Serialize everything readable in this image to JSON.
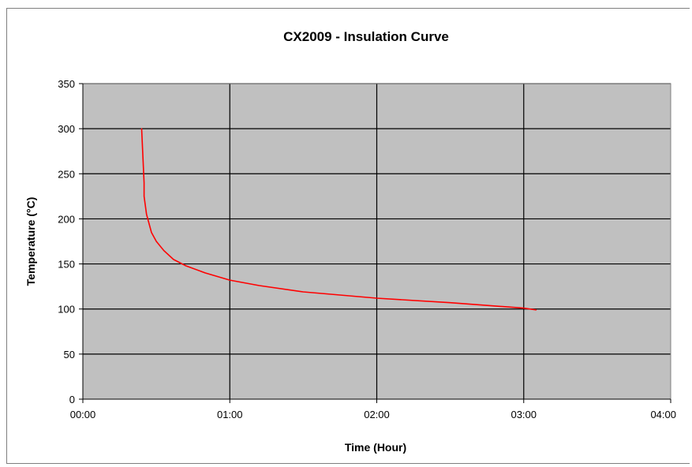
{
  "chart_data": {
    "type": "line",
    "title": "CX2009 - Insulation Curve",
    "xlabel": "Time (Hour)",
    "ylabel": "Temperature (°C)",
    "xlim": [
      "00:00",
      "04:00"
    ],
    "ylim": [
      0,
      350
    ],
    "x_ticks": [
      "00:00",
      "01:00",
      "02:00",
      "03:00",
      "04:00"
    ],
    "y_ticks": [
      "0",
      "50",
      "100",
      "150",
      "200",
      "250",
      "300",
      "350"
    ],
    "grid": true,
    "legend": "none",
    "series": [
      {
        "color": "#ff0000",
        "points": [
          {
            "x": "00:24",
            "y": 300
          },
          {
            "x": "00:25",
            "y": 240
          },
          {
            "x": "00:25",
            "y": 225
          },
          {
            "x": "00:26",
            "y": 205
          },
          {
            "x": "00:27",
            "y": 195
          },
          {
            "x": "00:28",
            "y": 185
          },
          {
            "x": "00:30",
            "y": 175
          },
          {
            "x": "00:33",
            "y": 165
          },
          {
            "x": "00:37",
            "y": 155
          },
          {
            "x": "00:42",
            "y": 148
          },
          {
            "x": "00:50",
            "y": 140
          },
          {
            "x": "01:00",
            "y": 132
          },
          {
            "x": "01:12",
            "y": 126
          },
          {
            "x": "01:30",
            "y": 119
          },
          {
            "x": "02:00",
            "y": 112
          },
          {
            "x": "02:30",
            "y": 107
          },
          {
            "x": "03:00",
            "y": 101
          },
          {
            "x": "03:05",
            "y": 99
          }
        ]
      }
    ],
    "colors": {
      "plot_background": "#c0c0c0",
      "gridline": "#000000",
      "line": "#ff0000"
    }
  }
}
